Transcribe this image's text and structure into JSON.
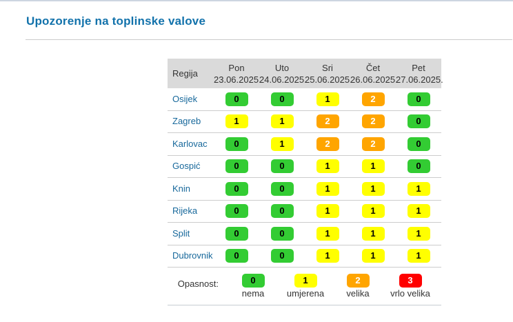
{
  "page": {
    "title": "Upozorenje na toplinske valove"
  },
  "table": {
    "region_header": "Regija",
    "days": [
      {
        "name": "Pon",
        "date": "23.06.2025."
      },
      {
        "name": "Uto",
        "date": "24.06.2025."
      },
      {
        "name": "Sri",
        "date": "25.06.2025."
      },
      {
        "name": "Čet",
        "date": "26.06.2025."
      },
      {
        "name": "Pet",
        "date": "27.06.2025."
      }
    ],
    "rows": [
      {
        "region": "Osijek",
        "levels": [
          0,
          0,
          1,
          2,
          0
        ]
      },
      {
        "region": "Zagreb",
        "levels": [
          1,
          1,
          2,
          2,
          0
        ]
      },
      {
        "region": "Karlovac",
        "levels": [
          0,
          1,
          2,
          2,
          0
        ]
      },
      {
        "region": "Gospić",
        "levels": [
          0,
          0,
          1,
          1,
          0
        ]
      },
      {
        "region": "Knin",
        "levels": [
          0,
          0,
          1,
          1,
          1
        ]
      },
      {
        "region": "Rijeka",
        "levels": [
          0,
          0,
          1,
          1,
          1
        ]
      },
      {
        "region": "Split",
        "levels": [
          0,
          0,
          1,
          1,
          1
        ]
      },
      {
        "region": "Dubrovnik",
        "levels": [
          0,
          0,
          1,
          1,
          1
        ]
      }
    ]
  },
  "legend": {
    "label": "Opasnost:",
    "items": [
      {
        "level": 0,
        "label": "nema"
      },
      {
        "level": 1,
        "label": "umjerena"
      },
      {
        "level": 2,
        "label": "velika"
      },
      {
        "level": 3,
        "label": "vrlo velika"
      }
    ]
  },
  "levels_palette": [
    {
      "value": "0",
      "bg": "#33cc33",
      "fg": "#000000"
    },
    {
      "value": "1",
      "bg": "#ffff00",
      "fg": "#000000"
    },
    {
      "value": "2",
      "bg": "#ffa500",
      "fg": "#ffffff"
    },
    {
      "value": "3",
      "bg": "#ff0000",
      "fg": "#ffffff"
    }
  ],
  "colors": {
    "title": "#1272ab",
    "region_link": "#17689b",
    "header_bg": "#dadada",
    "row_border": "#cccccc"
  },
  "chart_data": {
    "type": "heatmap",
    "title": "Upozorenje na toplinske valove",
    "x_labels": [
      "Pon 23.06.2025.",
      "Uto 24.06.2025.",
      "Sri 25.06.2025.",
      "Čet 26.06.2025.",
      "Pet 27.06.2025."
    ],
    "y_labels": [
      "Osijek",
      "Zagreb",
      "Karlovac",
      "Gospić",
      "Knin",
      "Rijeka",
      "Split",
      "Dubrovnik"
    ],
    "values": [
      [
        0,
        0,
        1,
        2,
        0
      ],
      [
        1,
        1,
        2,
        2,
        0
      ],
      [
        0,
        1,
        2,
        2,
        0
      ],
      [
        0,
        0,
        1,
        1,
        0
      ],
      [
        0,
        0,
        1,
        1,
        1
      ],
      [
        0,
        0,
        1,
        1,
        1
      ],
      [
        0,
        0,
        1,
        1,
        1
      ],
      [
        0,
        0,
        1,
        1,
        1
      ]
    ],
    "value_legend": {
      "0": "nema",
      "1": "umjerena",
      "2": "velika",
      "3": "vrlo velika"
    },
    "legend_position": "bottom"
  }
}
